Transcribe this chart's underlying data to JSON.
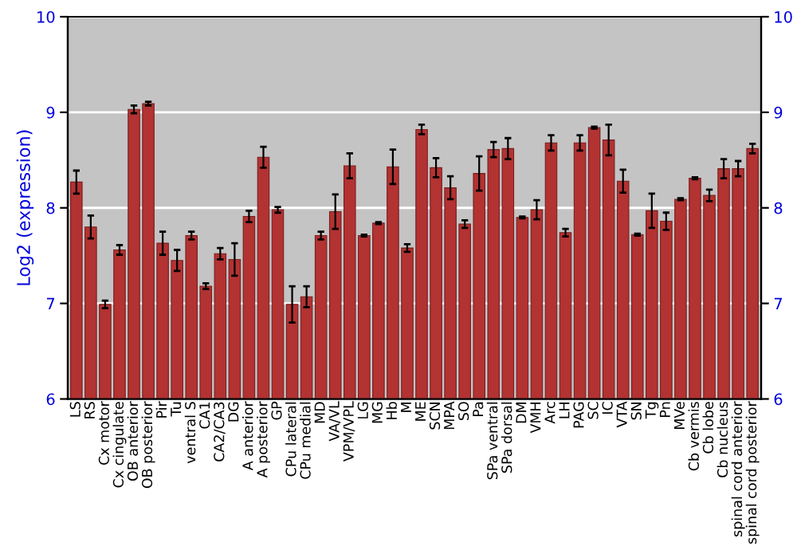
{
  "chart_data": {
    "type": "bar",
    "ylabel": "Log2 (expression)",
    "categories": [
      "LS",
      "RS",
      "Cx motor",
      "Cx cingulate",
      "OB anterior",
      "OB posterior",
      "Pir",
      "Tu",
      "ventral S",
      "CA1",
      "CA2/CA3",
      "DG",
      "A anterior",
      "A posterior",
      "GP",
      "CPu lateral",
      "CPu medial",
      "MD",
      "VA/VL",
      "VPM/VPL",
      "LG",
      "MG",
      "Hb",
      "M",
      "ME",
      "SCN",
      "MPA",
      "SO",
      "Pa",
      "SPa ventral",
      "SPa dorsal",
      "DM",
      "VMH",
      "Arc",
      "LH",
      "PAG",
      "SC",
      "IC",
      "VTA",
      "SN",
      "Tg",
      "Pn",
      "MVe",
      "Cb vermis",
      "Cb lobe",
      "Cb nucleus",
      "spinal cord anterior",
      "spinal cord posterior"
    ],
    "values": [
      8.27,
      7.8,
      6.99,
      7.56,
      9.03,
      9.09,
      7.63,
      7.45,
      7.71,
      7.18,
      7.52,
      7.46,
      7.91,
      8.53,
      7.98,
      6.99,
      7.07,
      7.71,
      7.96,
      8.44,
      7.71,
      7.84,
      8.43,
      7.58,
      8.82,
      8.42,
      8.21,
      7.83,
      8.36,
      8.61,
      8.62,
      7.9,
      7.98,
      8.68,
      7.74,
      8.68,
      8.84,
      8.71,
      8.28,
      7.72,
      7.97,
      7.86,
      8.09,
      8.31,
      8.13,
      8.41,
      8.41,
      8.62
    ],
    "errors": [
      0.12,
      0.12,
      0.04,
      0.05,
      0.04,
      0.02,
      0.12,
      0.11,
      0.04,
      0.03,
      0.06,
      0.17,
      0.06,
      0.11,
      0.03,
      0.19,
      0.11,
      0.04,
      0.18,
      0.13,
      0.01,
      0.01,
      0.18,
      0.04,
      0.05,
      0.1,
      0.12,
      0.04,
      0.18,
      0.08,
      0.11,
      0.01,
      0.1,
      0.08,
      0.04,
      0.08,
      0.01,
      0.16,
      0.12,
      0.01,
      0.18,
      0.09,
      0.01,
      0.01,
      0.06,
      0.1,
      0.08,
      0.05
    ],
    "color": "#b33232",
    "ylim": [
      6,
      10
    ],
    "yticks": [
      6,
      7,
      8,
      9,
      10
    ],
    "y2lim": [
      6,
      10
    ],
    "y2ticks": [
      6,
      7,
      8,
      9,
      10
    ],
    "grid": "y"
  }
}
